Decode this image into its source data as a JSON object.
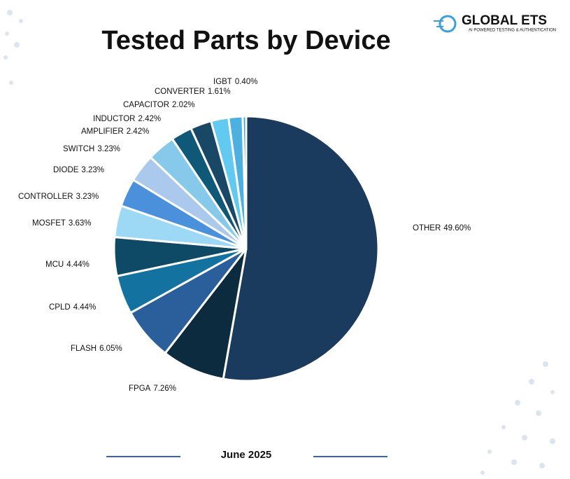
{
  "logo": {
    "name": "GLOBAL ETS",
    "tagline": "AI POWERED TESTING & AUTHENTICATION"
  },
  "chart_data": {
    "type": "pie",
    "title": "Tested Parts by Device",
    "subtitle": "June 2025",
    "categories": [
      "OTHER",
      "FPGA",
      "FLASH",
      "CPLD",
      "MCU",
      "MOSFET",
      "CONTROLLER",
      "DIODE",
      "SWITCH",
      "AMPLIFIER",
      "INDUCTOR",
      "CAPACITOR",
      "CONVERTER",
      "IGBT"
    ],
    "values": [
      49.6,
      7.26,
      6.05,
      4.44,
      4.44,
      3.63,
      3.23,
      3.23,
      3.23,
      2.42,
      2.42,
      2.02,
      1.61,
      0.4
    ],
    "value_labels": [
      "49.60%",
      "7.26%",
      "6.05%",
      "4.44%",
      "4.44%",
      "3.63%",
      "3.23%",
      "3.23%",
      "3.23%",
      "2.42%",
      "2.42%",
      "2.02%",
      "1.61%",
      "0.40%"
    ],
    "colors": [
      "#1a3a5e",
      "#0d2b3e",
      "#2a5f9c",
      "#1472a0",
      "#0e4a66",
      "#9dd8f4",
      "#4a90da",
      "#aac9ec",
      "#86c9ea",
      "#0f5878",
      "#184866",
      "#62c9f1",
      "#4cb0e0",
      "#3fa6dc"
    ]
  }
}
